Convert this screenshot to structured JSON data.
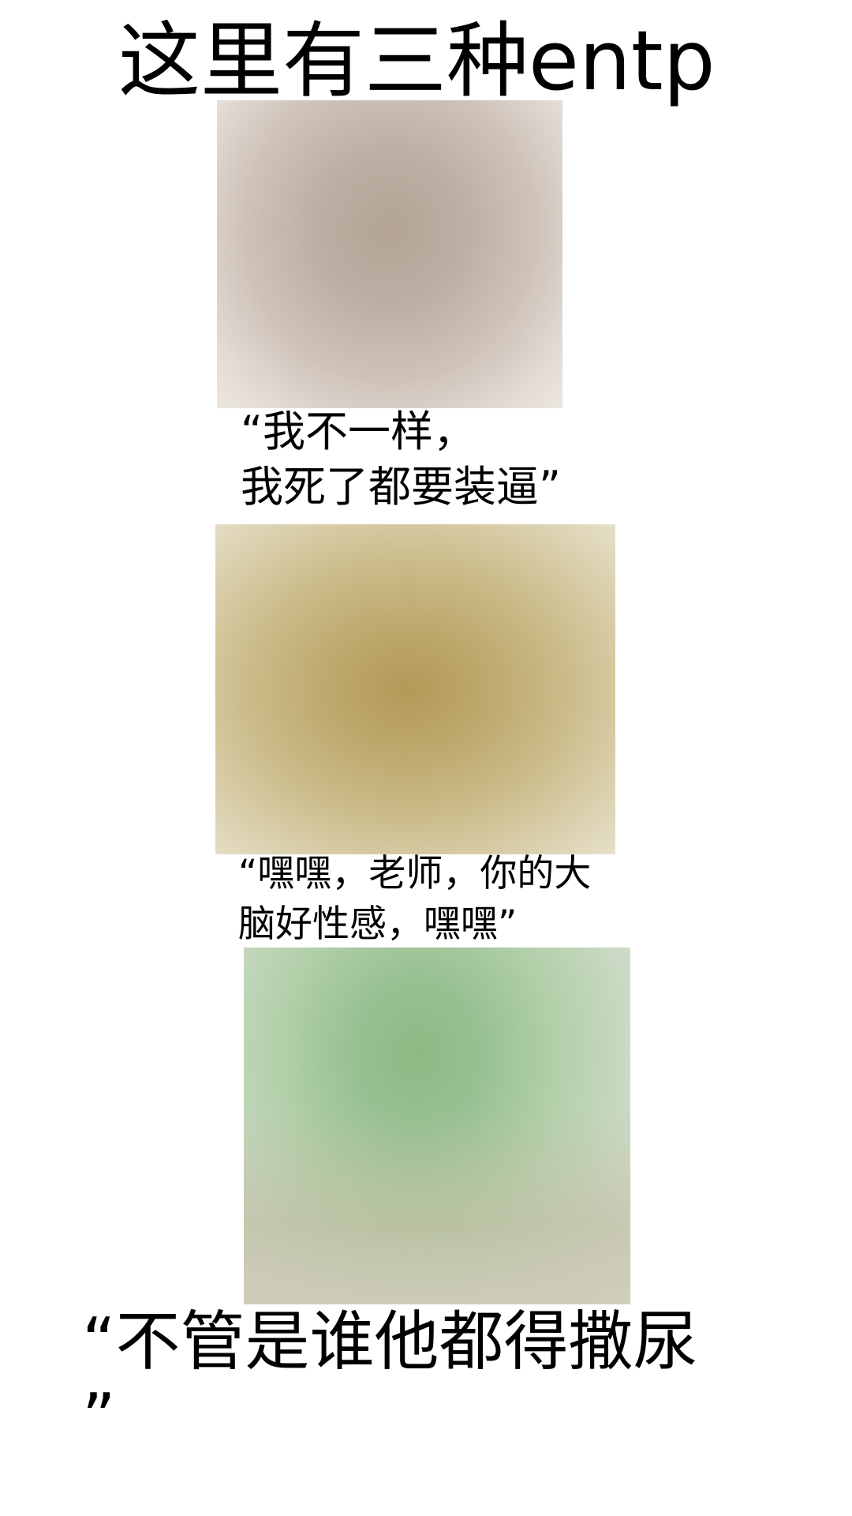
{
  "title": "这里有三种entp",
  "panels": [
    {
      "caption_line1": "“我不一样，",
      "caption_line2": "我死了都要装逼”"
    },
    {
      "caption_line1": "“嘿嘿，老师，你的大",
      "caption_line2": "脑好性感，嘿嘿”"
    },
    {
      "caption_line1": "“不管是谁他都得撒尿",
      "caption_line2": "”"
    }
  ]
}
